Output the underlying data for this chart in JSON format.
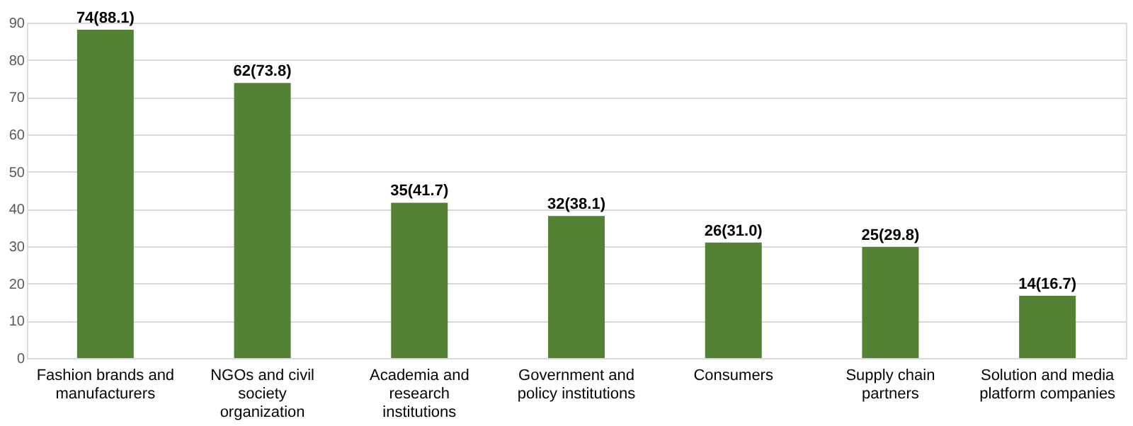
{
  "chart_data": {
    "type": "bar",
    "categories": [
      "Fashion brands and manufacturers",
      "NGOs and civil society organization",
      "Academia and research institutions",
      "Government and policy institutions",
      "Consumers",
      "Supply chain partners",
      "Solution and media platform companies"
    ],
    "values": [
      88.1,
      73.8,
      41.7,
      38.1,
      31.0,
      29.8,
      16.7
    ],
    "value_labels": [
      "74(88.1)",
      "62(73.8)",
      "35(41.7)",
      "32(38.1)",
      "26(31.0)",
      "25(29.8)",
      "14(16.7)"
    ],
    "color": "#548235",
    "ylim": [
      0,
      90
    ],
    "yticks": [
      0,
      10,
      20,
      30,
      40,
      50,
      60,
      70,
      80,
      90
    ],
    "grid": "y"
  }
}
